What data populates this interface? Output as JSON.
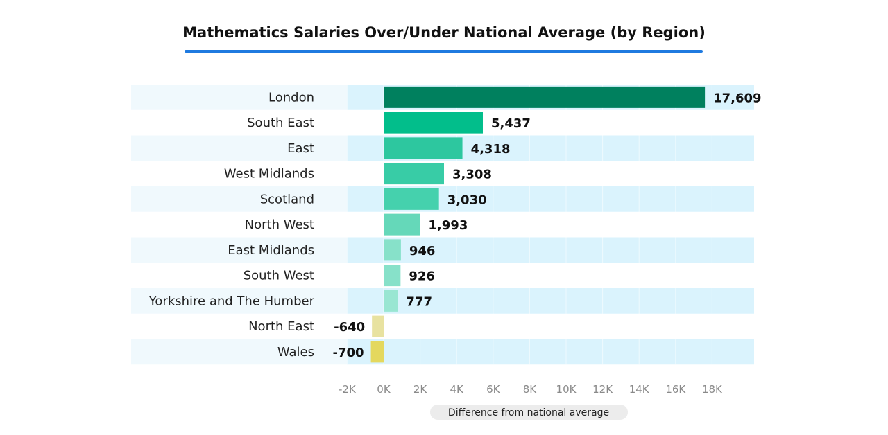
{
  "chart_data": {
    "type": "bar",
    "orientation": "horizontal",
    "title": "Mathematics Salaries Over/Under National Average (by Region)",
    "xlabel": "Difference from national average",
    "ylabel": "",
    "categories": [
      "London",
      "South East",
      "East",
      "West Midlands",
      "Scotland",
      "North West",
      "East Midlands",
      "South West",
      "Yorkshire and The Humber",
      "North East",
      "Wales"
    ],
    "values": [
      17609,
      5437,
      4318,
      3308,
      3030,
      1993,
      946,
      926,
      777,
      -640,
      -700
    ],
    "value_labels": [
      "17,609",
      "5,437",
      "4,318",
      "3,308",
      "3,030",
      "1,993",
      "946",
      "926",
      "777",
      "-640",
      "-700"
    ],
    "xlim": [
      -2000,
      20000
    ],
    "xticks": [
      -2000,
      0,
      2000,
      4000,
      6000,
      8000,
      10000,
      12000,
      14000,
      16000,
      18000
    ],
    "xtick_labels": [
      "-2K",
      "0K",
      "2K",
      "4K",
      "6K",
      "8K",
      "10K",
      "12K",
      "14K",
      "16K",
      "18K"
    ],
    "bar_colors": [
      "#00805e",
      "#02be8b",
      "#2dc79f",
      "#38ccA6",
      "#45d1ad",
      "#65d8b9",
      "#87e1c9",
      "#87e1c9",
      "#99e6d2",
      "#e8e2a0",
      "#e4d85e"
    ],
    "band_color": "#daf3fd",
    "accent_color": "#1f7ae0",
    "grid": true,
    "legend": "none"
  }
}
